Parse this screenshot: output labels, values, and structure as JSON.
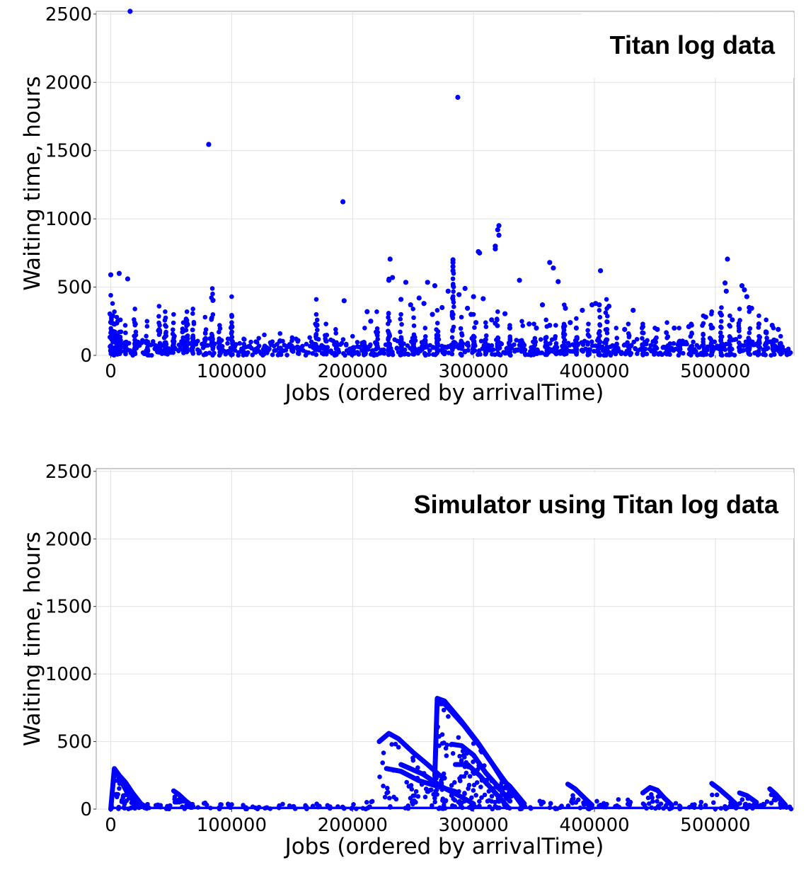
{
  "chart_data": [
    {
      "type": "scatter",
      "title": "Titan log data",
      "xlabel": "Jobs (ordered by arrivalTime)",
      "ylabel": "Waiting time, hours",
      "xlim": [
        -12000,
        565000
      ],
      "ylim": [
        0,
        2520
      ],
      "xticks": [
        "0",
        "100000",
        "200000",
        "300000",
        "400000",
        "500000"
      ],
      "yticks": [
        "0",
        "500",
        "1000",
        "1500",
        "2000",
        "2500"
      ],
      "grid": true,
      "marker_color": "#0000ff",
      "outliers": [
        [
          16000,
          2520
        ],
        [
          81000,
          1545
        ],
        [
          192000,
          1125
        ],
        [
          287000,
          1890
        ],
        [
          321000,
          950
        ],
        [
          320000,
          920
        ],
        [
          318000,
          800
        ],
        [
          318000,
          780
        ],
        [
          304000,
          760
        ],
        [
          305000,
          750
        ],
        [
          283000,
          700
        ],
        [
          283000,
          680
        ],
        [
          283000,
          650
        ],
        [
          283000,
          620
        ],
        [
          510000,
          705
        ],
        [
          363000,
          680
        ],
        [
          366000,
          640
        ],
        [
          405000,
          620
        ],
        [
          370000,
          540
        ],
        [
          338000,
          550
        ],
        [
          0,
          590
        ],
        [
          7000,
          600
        ],
        [
          14000,
          560
        ],
        [
          231000,
          705
        ],
        [
          233000,
          570
        ],
        [
          230000,
          550
        ],
        [
          244000,
          535
        ],
        [
          262000,
          535
        ],
        [
          268000,
          510
        ],
        [
          279000,
          470
        ],
        [
          288000,
          445
        ],
        [
          293000,
          490
        ],
        [
          300000,
          430
        ],
        [
          308000,
          415
        ],
        [
          321000,
          880
        ],
        [
          326000,
          305
        ],
        [
          357000,
          370
        ],
        [
          376000,
          345
        ],
        [
          390000,
          330
        ],
        [
          398000,
          370
        ],
        [
          401000,
          380
        ],
        [
          404000,
          370
        ],
        [
          412000,
          360
        ],
        [
          432000,
          330
        ],
        [
          508000,
          530
        ],
        [
          509000,
          470
        ],
        [
          522000,
          510
        ],
        [
          524000,
          480
        ],
        [
          526000,
          430
        ],
        [
          528000,
          350
        ],
        [
          530000,
          345
        ],
        [
          504000,
          310
        ],
        [
          505000,
          295
        ],
        [
          193000,
          400
        ],
        [
          212000,
          320
        ],
        [
          215000,
          250
        ],
        [
          240000,
          410
        ],
        [
          248000,
          370
        ],
        [
          255000,
          420
        ],
        [
          259000,
          380
        ],
        [
          266000,
          300
        ],
        [
          274000,
          350
        ],
        [
          295000,
          345
        ],
        [
          298000,
          300
        ],
        [
          302000,
          240
        ],
        [
          315000,
          260
        ],
        [
          318000,
          235
        ],
        [
          330000,
          200
        ],
        [
          346000,
          230
        ],
        [
          352000,
          200
        ],
        [
          363000,
          220
        ],
        [
          380000,
          240
        ],
        [
          385000,
          200
        ],
        [
          425000,
          190
        ],
        [
          440000,
          210
        ],
        [
          452000,
          190
        ],
        [
          466000,
          200
        ],
        [
          478000,
          210
        ],
        [
          492000,
          280
        ],
        [
          514000,
          260
        ],
        [
          536000,
          230
        ],
        [
          547000,
          220
        ],
        [
          552000,
          190
        ]
      ],
      "clusters": [
        [
          0,
          440
        ],
        [
          1500,
          380
        ],
        [
          3000,
          320
        ],
        [
          5000,
          280
        ],
        [
          8000,
          260
        ],
        [
          12000,
          220
        ],
        [
          20000,
          340
        ],
        [
          30000,
          250
        ],
        [
          40000,
          360
        ],
        [
          45000,
          320
        ],
        [
          52000,
          300
        ],
        [
          60000,
          240
        ],
        [
          63000,
          320
        ],
        [
          68000,
          340
        ],
        [
          78000,
          280
        ],
        [
          84000,
          490
        ],
        [
          90000,
          220
        ],
        [
          100000,
          430
        ],
        [
          110000,
          120
        ],
        [
          120000,
          100
        ],
        [
          127000,
          150
        ],
        [
          140000,
          160
        ],
        [
          150000,
          130
        ],
        [
          155000,
          110
        ],
        [
          170000,
          410
        ],
        [
          178000,
          230
        ],
        [
          186000,
          190
        ],
        [
          200000,
          140
        ],
        [
          210000,
          200
        ],
        [
          220000,
          320
        ],
        [
          230000,
          560
        ],
        [
          240000,
          300
        ],
        [
          250000,
          340
        ],
        [
          260000,
          200
        ],
        [
          270000,
          330
        ],
        [
          283000,
          700
        ],
        [
          290000,
          280
        ],
        [
          300000,
          300
        ],
        [
          310000,
          240
        ],
        [
          320000,
          320
        ],
        [
          330000,
          220
        ],
        [
          340000,
          250
        ],
        [
          350000,
          230
        ],
        [
          360000,
          260
        ],
        [
          368000,
          220
        ],
        [
          375000,
          370
        ],
        [
          385000,
          270
        ],
        [
          395000,
          230
        ],
        [
          404000,
          330
        ],
        [
          410000,
          410
        ],
        [
          418000,
          200
        ],
        [
          428000,
          230
        ],
        [
          440000,
          230
        ],
        [
          450000,
          200
        ],
        [
          460000,
          240
        ],
        [
          470000,
          200
        ],
        [
          480000,
          230
        ],
        [
          490000,
          290
        ],
        [
          497000,
          320
        ],
        [
          505000,
          350
        ],
        [
          512000,
          290
        ],
        [
          520000,
          340
        ],
        [
          528000,
          320
        ],
        [
          536000,
          290
        ],
        [
          542000,
          260
        ],
        [
          548000,
          200
        ],
        [
          554000,
          140
        ],
        [
          560000,
          40
        ]
      ]
    },
    {
      "type": "scatter",
      "title": "Simulator using Titan log data",
      "xlabel": "Jobs (ordered by arrivalTime)",
      "ylabel": "Waiting time, hours",
      "xlim": [
        -12000,
        565000
      ],
      "ylim": [
        0,
        2520
      ],
      "xticks": [
        "0",
        "100000",
        "200000",
        "300000",
        "400000",
        "500000"
      ],
      "yticks": [
        "0",
        "500",
        "1000",
        "1500",
        "2000",
        "2500"
      ],
      "grid": true,
      "marker_color": "#0000ff",
      "curves": [
        [
          [
            0,
            0
          ],
          [
            3000,
            300
          ],
          [
            7000,
            250
          ],
          [
            12000,
            200
          ],
          [
            18000,
            120
          ],
          [
            25000,
            40
          ],
          [
            30000,
            10
          ]
        ],
        [
          [
            3000,
            290
          ],
          [
            9000,
            200
          ],
          [
            15000,
            100
          ],
          [
            22000,
            30
          ]
        ],
        [
          [
            52000,
            135
          ],
          [
            56000,
            110
          ],
          [
            62000,
            60
          ],
          [
            68000,
            20
          ]
        ],
        [
          [
            222000,
            500
          ],
          [
            230000,
            560
          ],
          [
            238000,
            520
          ],
          [
            250000,
            420
          ],
          [
            262000,
            330
          ],
          [
            272000,
            250
          ],
          [
            276000,
            230
          ]
        ],
        [
          [
            228000,
            300
          ],
          [
            240000,
            280
          ],
          [
            255000,
            210
          ],
          [
            270000,
            170
          ],
          [
            285000,
            130
          ]
        ],
        [
          [
            240000,
            330
          ],
          [
            258000,
            260
          ],
          [
            275000,
            160
          ],
          [
            290000,
            90
          ],
          [
            300000,
            40
          ]
        ],
        [
          [
            268000,
            250
          ],
          [
            270000,
            820
          ],
          [
            276000,
            800
          ],
          [
            290000,
            650
          ],
          [
            303000,
            500
          ],
          [
            316000,
            330
          ],
          [
            324000,
            215
          ],
          [
            330000,
            170
          ],
          [
            342000,
            40
          ]
        ],
        [
          [
            270000,
            780
          ],
          [
            276000,
            780
          ],
          [
            292000,
            620
          ],
          [
            305000,
            470
          ],
          [
            320000,
            280
          ],
          [
            328000,
            180
          ],
          [
            340000,
            30
          ]
        ],
        [
          [
            282000,
            480
          ],
          [
            290000,
            470
          ],
          [
            300000,
            400
          ],
          [
            310000,
            270
          ],
          [
            320000,
            170
          ],
          [
            330000,
            60
          ]
        ],
        [
          [
            285000,
            330
          ],
          [
            295000,
            330
          ],
          [
            305000,
            250
          ],
          [
            318000,
            120
          ],
          [
            328000,
            20
          ]
        ],
        [
          [
            378000,
            185
          ],
          [
            384000,
            150
          ],
          [
            392000,
            80
          ],
          [
            398000,
            30
          ]
        ],
        [
          [
            440000,
            120
          ],
          [
            446000,
            160
          ],
          [
            452000,
            140
          ],
          [
            458000,
            80
          ],
          [
            464000,
            30
          ]
        ],
        [
          [
            497000,
            190
          ],
          [
            503000,
            150
          ],
          [
            512000,
            80
          ],
          [
            518000,
            30
          ]
        ],
        [
          [
            520000,
            120
          ],
          [
            526000,
            100
          ],
          [
            534000,
            50
          ]
        ],
        [
          [
            545000,
            150
          ],
          [
            550000,
            110
          ],
          [
            558000,
            30
          ]
        ]
      ],
      "base_noise": [
        [
          30000,
          40
        ],
        [
          40000,
          40
        ],
        [
          48000,
          30
        ],
        [
          70000,
          40
        ],
        [
          80000,
          50
        ],
        [
          90000,
          40
        ],
        [
          100000,
          40
        ],
        [
          110000,
          30
        ],
        [
          120000,
          20
        ],
        [
          130000,
          50
        ],
        [
          140000,
          40
        ],
        [
          150000,
          40
        ],
        [
          160000,
          30
        ],
        [
          170000,
          50
        ],
        [
          180000,
          40
        ],
        [
          190000,
          30
        ],
        [
          200000,
          40
        ],
        [
          210000,
          60
        ],
        [
          215000,
          80
        ],
        [
          345000,
          40
        ],
        [
          355000,
          60
        ],
        [
          365000,
          50
        ],
        [
          370000,
          40
        ],
        [
          405000,
          60
        ],
        [
          410000,
          50
        ],
        [
          420000,
          80
        ],
        [
          430000,
          70
        ],
        [
          470000,
          60
        ],
        [
          480000,
          40
        ],
        [
          490000,
          60
        ],
        [
          535000,
          40
        ],
        [
          540000,
          60
        ],
        [
          560000,
          20
        ]
      ]
    }
  ]
}
